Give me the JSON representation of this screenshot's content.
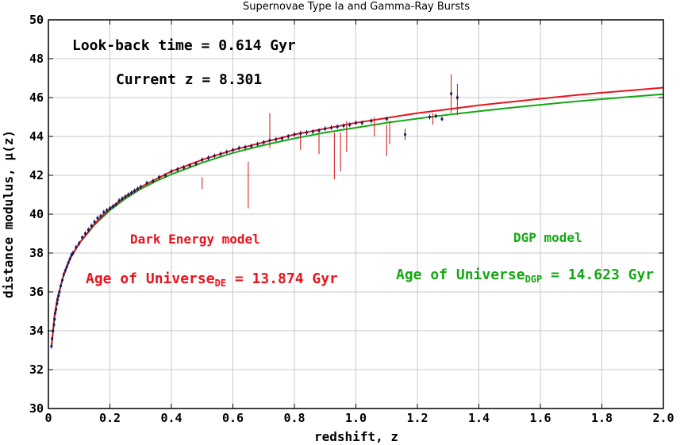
{
  "chart_data": {
    "type": "scatter",
    "title": "Supernovae Type Ia and Gamma-Ray Bursts",
    "xlabel": "redshift, z",
    "ylabel": "distance modulus, μ(z)",
    "xlim": [
      0,
      2.0
    ],
    "ylim": [
      30,
      50
    ],
    "xticks": [
      "0",
      "0.2",
      "0.4",
      "0.6",
      "0.8",
      "1.0",
      "1.2",
      "1.4",
      "1.6",
      "1.8",
      "2.0"
    ],
    "yticks": [
      "30",
      "32",
      "34",
      "36",
      "38",
      "40",
      "42",
      "44",
      "46",
      "48",
      "50"
    ],
    "grid": true,
    "colors": {
      "de": "#e8141c",
      "dgp": "#14a814",
      "points": "#1a1a5a",
      "errors": "#d01010"
    },
    "annotations": {
      "lookback": "Look-back time = 0.614 Gyr",
      "current_z": "Current z = 8.301",
      "de_label": "Dark Energy model",
      "de_age_prefix": "Age of Universe",
      "de_age_sub": "DE",
      "de_age_suffix": " = 13.874 Gyr",
      "dgp_label": "DGP model",
      "dgp_age_prefix": "Age of Universe",
      "dgp_age_sub": "DGP",
      "dgp_age_suffix": " = 14.623 Gyr"
    },
    "series": [
      {
        "name": "Dark Energy model",
        "color": "#e8141c",
        "x": [
          0.01,
          0.02,
          0.03,
          0.05,
          0.07,
          0.1,
          0.15,
          0.2,
          0.25,
          0.3,
          0.35,
          0.4,
          0.5,
          0.6,
          0.7,
          0.8,
          0.9,
          1.0,
          1.1,
          1.2,
          1.3,
          1.4,
          1.5,
          1.6,
          1.7,
          1.8,
          1.9,
          2.0
        ],
        "y": [
          33.2,
          34.8,
          35.7,
          36.9,
          37.7,
          38.5,
          39.5,
          40.3,
          40.9,
          41.4,
          41.8,
          42.2,
          42.8,
          43.3,
          43.7,
          44.1,
          44.4,
          44.7,
          44.95,
          45.2,
          45.4,
          45.6,
          45.77,
          45.94,
          46.1,
          46.25,
          46.38,
          46.51
        ]
      },
      {
        "name": "DGP model",
        "color": "#14a814",
        "x": [
          0.01,
          0.02,
          0.03,
          0.05,
          0.07,
          0.1,
          0.15,
          0.2,
          0.25,
          0.3,
          0.35,
          0.4,
          0.5,
          0.6,
          0.7,
          0.8,
          0.9,
          1.0,
          1.1,
          1.2,
          1.3,
          1.4,
          1.5,
          1.6,
          1.7,
          1.8,
          1.9,
          2.0
        ],
        "y": [
          33.2,
          34.8,
          35.7,
          36.9,
          37.7,
          38.5,
          39.45,
          40.2,
          40.8,
          41.3,
          41.7,
          42.05,
          42.65,
          43.15,
          43.55,
          43.9,
          44.2,
          44.45,
          44.7,
          44.92,
          45.12,
          45.3,
          45.47,
          45.63,
          45.78,
          45.92,
          46.05,
          46.17
        ]
      }
    ],
    "scatter_points": [
      [
        0.01,
        33.2
      ],
      [
        0.012,
        33.6
      ],
      [
        0.015,
        34.0
      ],
      [
        0.018,
        34.3
      ],
      [
        0.02,
        34.6
      ],
      [
        0.022,
        34.9
      ],
      [
        0.025,
        35.1
      ],
      [
        0.028,
        35.4
      ],
      [
        0.03,
        35.6
      ],
      [
        0.033,
        35.8
      ],
      [
        0.036,
        36.0
      ],
      [
        0.04,
        36.3
      ],
      [
        0.045,
        36.6
      ],
      [
        0.05,
        36.9
      ],
      [
        0.055,
        37.1
      ],
      [
        0.06,
        37.3
      ],
      [
        0.065,
        37.5
      ],
      [
        0.07,
        37.7
      ],
      [
        0.075,
        37.9
      ],
      [
        0.08,
        38.0
      ],
      [
        0.09,
        38.3
      ],
      [
        0.1,
        38.5
      ],
      [
        0.11,
        38.8
      ],
      [
        0.12,
        39.0
      ],
      [
        0.13,
        39.2
      ],
      [
        0.14,
        39.4
      ],
      [
        0.15,
        39.6
      ],
      [
        0.16,
        39.8
      ],
      [
        0.17,
        39.9
      ],
      [
        0.18,
        40.1
      ],
      [
        0.19,
        40.2
      ],
      [
        0.2,
        40.3
      ],
      [
        0.21,
        40.4
      ],
      [
        0.22,
        40.5
      ],
      [
        0.23,
        40.7
      ],
      [
        0.24,
        40.8
      ],
      [
        0.25,
        40.9
      ],
      [
        0.26,
        41.0
      ],
      [
        0.27,
        41.1
      ],
      [
        0.28,
        41.2
      ],
      [
        0.29,
        41.3
      ],
      [
        0.3,
        41.4
      ],
      [
        0.32,
        41.6
      ],
      [
        0.34,
        41.7
      ],
      [
        0.36,
        41.9
      ],
      [
        0.38,
        42.0
      ],
      [
        0.4,
        42.2
      ],
      [
        0.42,
        42.3
      ],
      [
        0.44,
        42.4
      ],
      [
        0.46,
        42.5
      ],
      [
        0.48,
        42.6
      ],
      [
        0.5,
        42.8
      ],
      [
        0.52,
        42.9
      ],
      [
        0.54,
        43.0
      ],
      [
        0.56,
        43.1
      ],
      [
        0.58,
        43.2
      ],
      [
        0.6,
        43.3
      ],
      [
        0.62,
        43.4
      ],
      [
        0.64,
        43.45
      ],
      [
        0.66,
        43.5
      ],
      [
        0.68,
        43.6
      ],
      [
        0.7,
        43.7
      ],
      [
        0.72,
        43.8
      ],
      [
        0.74,
        43.85
      ],
      [
        0.76,
        43.9
      ],
      [
        0.78,
        44.0
      ],
      [
        0.8,
        44.1
      ],
      [
        0.82,
        44.15
      ],
      [
        0.84,
        44.2
      ],
      [
        0.86,
        44.25
      ],
      [
        0.88,
        44.3
      ],
      [
        0.9,
        44.4
      ],
      [
        0.92,
        44.45
      ],
      [
        0.94,
        44.5
      ],
      [
        0.96,
        44.55
      ],
      [
        0.98,
        44.6
      ],
      [
        1.0,
        44.7
      ],
      [
        1.02,
        44.7
      ],
      [
        1.05,
        44.8
      ],
      [
        1.1,
        44.9
      ],
      [
        1.16,
        44.1
      ],
      [
        1.24,
        45.0
      ],
      [
        1.26,
        45.05
      ],
      [
        1.28,
        44.9
      ],
      [
        1.31,
        46.2
      ],
      [
        1.33,
        46.0
      ]
    ],
    "error_bars": [
      [
        0.65,
        41.5,
        1.2
      ],
      [
        0.72,
        44.3,
        0.9
      ],
      [
        0.93,
        43.0,
        1.2
      ],
      [
        0.95,
        43.2,
        1.0
      ],
      [
        0.97,
        44.0,
        0.8
      ],
      [
        1.06,
        44.5,
        0.5
      ],
      [
        1.1,
        43.8,
        0.8
      ],
      [
        1.11,
        44.2,
        0.6
      ],
      [
        1.16,
        44.1,
        0.3
      ],
      [
        1.31,
        46.2,
        1.0
      ],
      [
        1.33,
        45.9,
        0.8
      ],
      [
        0.5,
        41.6,
        0.3
      ],
      [
        0.82,
        43.8,
        0.5
      ],
      [
        0.88,
        43.6,
        0.5
      ],
      [
        1.25,
        44.9,
        0.3
      ]
    ]
  }
}
